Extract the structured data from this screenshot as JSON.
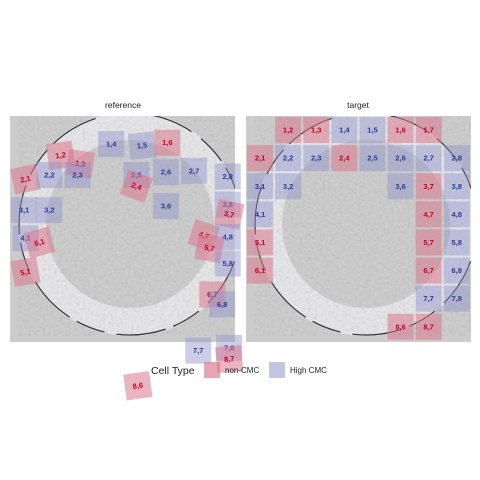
{
  "chart_data": {
    "type": "heatmap",
    "legend": {
      "title": "Cell Type",
      "position": "bottom",
      "entries": [
        {
          "label": "non-CMC",
          "color": "#d9778c"
        },
        {
          "label": "High CMC",
          "color": "#8f93cc"
        }
      ]
    },
    "colors": {
      "non-CMC": "#d9778c",
      "High CMC": "#8f93cc",
      "non-CMC_text": "#c4002a",
      "High CMC_text": "#2b3a9c",
      "panel_background": "#cccccc"
    },
    "panels": [
      {
        "title": "reference",
        "tiles": [
          {
            "label": "1,2",
            "type": "non-CMC",
            "col": 1.3,
            "row": 0.9,
            "rot": -8
          },
          {
            "label": "1,3",
            "type": "non-CMC",
            "col": 2.0,
            "row": 1.2,
            "rot": 8
          },
          {
            "label": "1,4",
            "type": "High CMC",
            "col": 3.1,
            "row": 0.5,
            "rot": 0
          },
          {
            "label": "1,5",
            "type": "High CMC",
            "col": 4.2,
            "row": 0.55,
            "rot": -6
          },
          {
            "label": "1,6",
            "type": "non-CMC",
            "col": 5.1,
            "row": 0.45,
            "rot": 0
          },
          {
            "label": "2,1",
            "type": "non-CMC",
            "col": 0.05,
            "row": 1.75,
            "rot": -12
          },
          {
            "label": "2,2",
            "type": "High CMC",
            "col": 0.9,
            "row": 1.6,
            "rot": 0
          },
          {
            "label": "2,3",
            "type": "High CMC",
            "col": 1.9,
            "row": 1.6,
            "rot": 0
          },
          {
            "label": "2,5",
            "type": "High CMC",
            "col": 4.0,
            "row": 1.6,
            "rot": 0
          },
          {
            "label": "2,6",
            "type": "High CMC",
            "col": 5.05,
            "row": 1.5,
            "rot": 0
          },
          {
            "label": "2,7",
            "type": "High CMC",
            "col": 6.05,
            "row": 1.45,
            "rot": 0
          },
          {
            "label": "2,8",
            "type": "High CMC",
            "col": 7.25,
            "row": 1.65,
            "rot": 0
          },
          {
            "label": "2,4",
            "type": "non-CMC",
            "col": 4.0,
            "row": 2.0,
            "rot": 20
          },
          {
            "label": "3,1",
            "type": "High CMC",
            "col": 0.0,
            "row": 2.85,
            "rot": 0
          },
          {
            "label": "3,2",
            "type": "High CMC",
            "col": 0.9,
            "row": 2.85,
            "rot": 0
          },
          {
            "label": "3,6",
            "type": "High CMC",
            "col": 5.05,
            "row": 2.7,
            "rot": 0
          },
          {
            "label": "3,8",
            "type": "High CMC",
            "col": 7.25,
            "row": 2.65,
            "rot": 0
          },
          {
            "label": "3,7",
            "type": "non-CMC",
            "col": 7.3,
            "row": 3.0,
            "rot": 12
          },
          {
            "label": "4,1",
            "type": "High CMC",
            "col": 0.05,
            "row": 3.85,
            "rot": 0
          },
          {
            "label": "6,1",
            "type": "non-CMC",
            "col": 0.55,
            "row": 4.0,
            "rot": -15
          },
          {
            "label": "4,7",
            "type": "non-CMC",
            "col": 6.4,
            "row": 3.75,
            "rot": 18
          },
          {
            "label": "4,8",
            "type": "High CMC",
            "col": 7.25,
            "row": 3.8,
            "rot": 0
          },
          {
            "label": "5,7",
            "type": "non-CMC",
            "col": 6.6,
            "row": 4.2,
            "rot": 10
          },
          {
            "label": "5,1",
            "type": "non-CMC",
            "col": 0.05,
            "row": 5.05,
            "rot": -10
          },
          {
            "label": "5,8",
            "type": "High CMC",
            "col": 7.25,
            "row": 4.75,
            "rot": 0
          },
          {
            "label": "6,7",
            "type": "non-CMC",
            "col": 6.7,
            "row": 5.85,
            "rot": 0
          },
          {
            "label": "6,8",
            "type": "High CMC",
            "col": 7.05,
            "row": 6.2,
            "rot": 0
          },
          {
            "label": "7,7",
            "type": "High CMC",
            "col": 6.2,
            "row": 7.85,
            "rot": 0
          },
          {
            "label": "7,8",
            "type": "High CMC",
            "col": 7.3,
            "row": 7.75,
            "rot": 0
          },
          {
            "label": "8,7",
            "type": "non-CMC",
            "col": 7.3,
            "row": 8.15,
            "rot": -5
          },
          {
            "label": "8,6",
            "type": "non-CMC",
            "col": 4.05,
            "row": 9.1,
            "rot": -8
          }
        ]
      },
      {
        "title": "target",
        "tiles": [
          {
            "label": "1,2",
            "type": "non-CMC",
            "col": 1,
            "row": 0,
            "rot": 0
          },
          {
            "label": "1,3",
            "type": "non-CMC",
            "col": 2,
            "row": 0,
            "rot": 0
          },
          {
            "label": "1,4",
            "type": "High CMC",
            "col": 3,
            "row": 0,
            "rot": 0
          },
          {
            "label": "1,5",
            "type": "High CMC",
            "col": 4,
            "row": 0,
            "rot": 0
          },
          {
            "label": "1,6",
            "type": "non-CMC",
            "col": 5,
            "row": 0,
            "rot": 0
          },
          {
            "label": "1,7",
            "type": "non-CMC",
            "col": 6,
            "row": 0,
            "rot": 0
          },
          {
            "label": "2,1",
            "type": "non-CMC",
            "col": 0,
            "row": 1,
            "rot": 0
          },
          {
            "label": "2,2",
            "type": "High CMC",
            "col": 1,
            "row": 1,
            "rot": 0
          },
          {
            "label": "2,3",
            "type": "High CMC",
            "col": 2,
            "row": 1,
            "rot": 0
          },
          {
            "label": "2,4",
            "type": "non-CMC",
            "col": 3,
            "row": 1,
            "rot": 0
          },
          {
            "label": "2,5",
            "type": "High CMC",
            "col": 4,
            "row": 1,
            "rot": 0
          },
          {
            "label": "2,6",
            "type": "High CMC",
            "col": 5,
            "row": 1,
            "rot": 0
          },
          {
            "label": "2,7",
            "type": "High CMC",
            "col": 6,
            "row": 1,
            "rot": 0
          },
          {
            "label": "2,8",
            "type": "High CMC",
            "col": 7,
            "row": 1,
            "rot": 0
          },
          {
            "label": "3,1",
            "type": "High CMC",
            "col": 0,
            "row": 2,
            "rot": 0
          },
          {
            "label": "3,2",
            "type": "High CMC",
            "col": 1,
            "row": 2,
            "rot": 0
          },
          {
            "label": "3,6",
            "type": "High CMC",
            "col": 5,
            "row": 2,
            "rot": 0
          },
          {
            "label": "3,7",
            "type": "non-CMC",
            "col": 6,
            "row": 2,
            "rot": 0
          },
          {
            "label": "3,8",
            "type": "High CMC",
            "col": 7,
            "row": 2,
            "rot": 0
          },
          {
            "label": "4,1",
            "type": "High CMC",
            "col": 0,
            "row": 3,
            "rot": 0
          },
          {
            "label": "4,7",
            "type": "non-CMC",
            "col": 6,
            "row": 3,
            "rot": 0
          },
          {
            "label": "4,8",
            "type": "High CMC",
            "col": 7,
            "row": 3,
            "rot": 0
          },
          {
            "label": "5,1",
            "type": "non-CMC",
            "col": 0,
            "row": 4,
            "rot": 0
          },
          {
            "label": "5,7",
            "type": "non-CMC",
            "col": 6,
            "row": 4,
            "rot": 0
          },
          {
            "label": "5,8",
            "type": "High CMC",
            "col": 7,
            "row": 4,
            "rot": 0
          },
          {
            "label": "6,1",
            "type": "non-CMC",
            "col": 0,
            "row": 5,
            "rot": 0
          },
          {
            "label": "6,7",
            "type": "non-CMC",
            "col": 6,
            "row": 5,
            "rot": 0
          },
          {
            "label": "6,8",
            "type": "High CMC",
            "col": 7,
            "row": 5,
            "rot": 0
          },
          {
            "label": "7,7",
            "type": "High CMC",
            "col": 6,
            "row": 6,
            "rot": 0
          },
          {
            "label": "7,8",
            "type": "High CMC",
            "col": 7,
            "row": 6,
            "rot": 0
          },
          {
            "label": "8,6",
            "type": "non-CMC",
            "col": 5,
            "row": 7,
            "rot": 0
          },
          {
            "label": "8,7",
            "type": "non-CMC",
            "col": 6,
            "row": 7,
            "rot": 0
          }
        ]
      }
    ]
  }
}
